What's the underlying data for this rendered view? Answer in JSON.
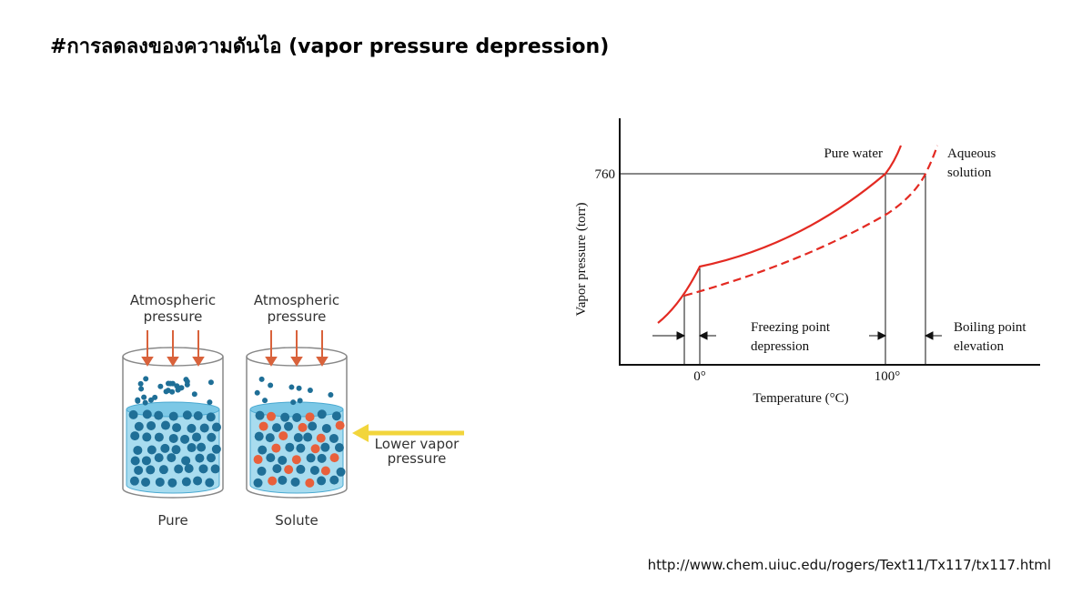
{
  "title": "#การลดลงของความดันไอ (vapor pressure depression)",
  "beakers": [
    {
      "pressure": [
        "Atmospheric",
        "pressure"
      ],
      "label": "Pure"
    },
    {
      "pressure": [
        "Atmospheric",
        "pressure"
      ],
      "label": "Solute"
    }
  ],
  "arrow_label": [
    "Lower vapor",
    "pressure"
  ],
  "graph": {
    "y_label": "Vapor pressure (torr)",
    "x_label": "Temperature (°C)",
    "y_tick": "760",
    "x_ticks": [
      "0°",
      "100°"
    ],
    "pure_label": "Pure water",
    "solution_label": [
      "Aqueous",
      "solution"
    ],
    "freezing": [
      "Freezing point",
      "depression"
    ],
    "boiling": [
      "Boiling point",
      "elevation"
    ]
  },
  "source": "http://www.chem.uiuc.edu/rogers/Text11/Tx117/tx117.html"
}
